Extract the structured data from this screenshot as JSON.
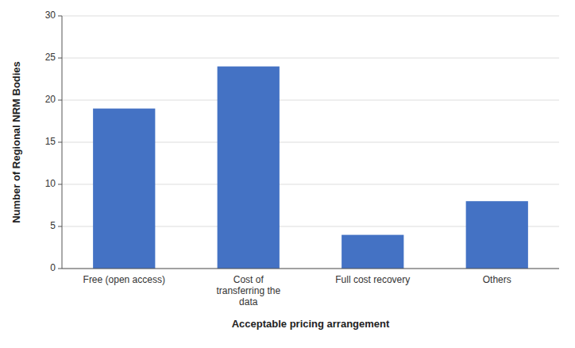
{
  "chart_data": {
    "type": "bar",
    "categories": [
      "Free (open access)",
      "Cost of\ntransferring the\ndata",
      "Full cost recovery",
      "Others"
    ],
    "values": [
      19,
      24,
      4,
      8
    ],
    "color": "#4472C4",
    "xlabel": "Acceptable pricing arrangement",
    "ylabel": "Number of Regional NRM Bodies",
    "ylim": [
      0,
      30
    ],
    "yticks": [
      0,
      5,
      10,
      15,
      20,
      25,
      30
    ],
    "grid": true
  }
}
